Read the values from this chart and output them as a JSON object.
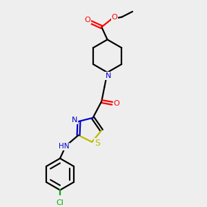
{
  "bg_color": "#eeeeee",
  "bond_color": "#000000",
  "O_color": "#ff0000",
  "N_color": "#0000cc",
  "S_color": "#bbbb00",
  "Cl_color": "#00aa00",
  "lw": 1.6,
  "figsize": [
    3.0,
    3.0
  ],
  "dpi": 100,
  "xlim": [
    0,
    10
  ],
  "ylim": [
    0,
    10
  ]
}
